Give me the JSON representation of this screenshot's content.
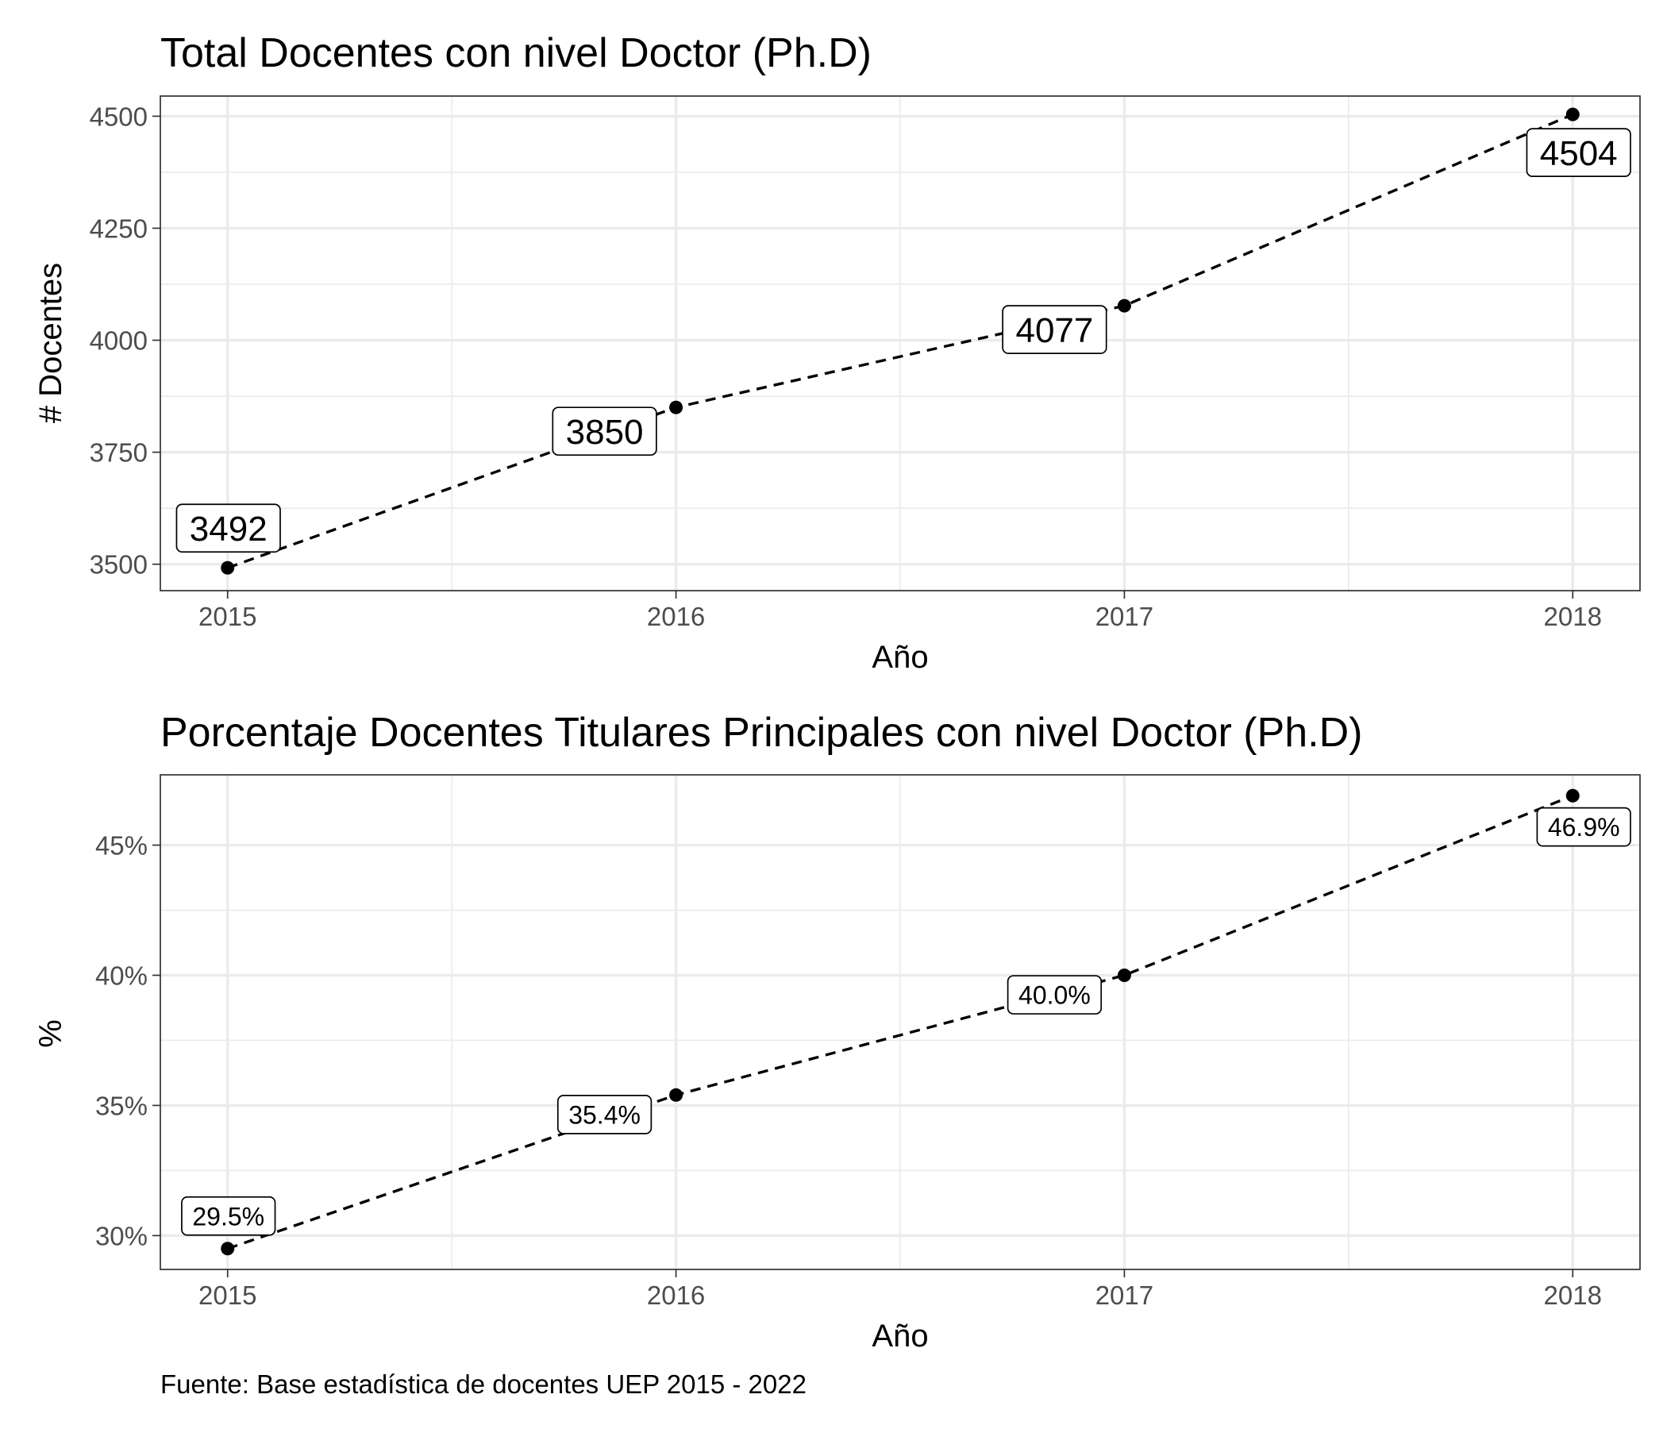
{
  "chart_data": [
    {
      "type": "line",
      "title": "Total Docentes con nivel Doctor (Ph.D)",
      "xlabel": "Año",
      "ylabel": "# Docentes",
      "x": [
        2015,
        2016,
        2017,
        2018
      ],
      "x_tick_labels": [
        "2015",
        "2016",
        "2017",
        "2018"
      ],
      "values": [
        3492,
        3850,
        4077,
        4504
      ],
      "data_labels": [
        "3492",
        "3850",
        "4077",
        "4504"
      ],
      "y_ticks": [
        3500,
        3750,
        4000,
        4250,
        4500
      ],
      "y_tick_labels": [
        "3500",
        "3750",
        "4000",
        "4250",
        "4500"
      ],
      "xlim": [
        2014.85,
        2018.15
      ],
      "ylim": [
        3441,
        4545
      ],
      "grid": true,
      "line_style": "dashed",
      "colors": {
        "line": "#000000",
        "grid": "#ebebeb",
        "border": "#333333"
      }
    },
    {
      "type": "line",
      "title": "Porcentaje Docentes Titulares Principales con nivel Doctor (Ph.D)",
      "xlabel": "Año",
      "ylabel": "%",
      "x": [
        2015,
        2016,
        2017,
        2018
      ],
      "x_tick_labels": [
        "2015",
        "2016",
        "2017",
        "2018"
      ],
      "values": [
        29.5,
        35.4,
        40.0,
        46.9
      ],
      "data_labels": [
        "29.5%",
        "35.4%",
        "40.0%",
        "46.9%"
      ],
      "y_ticks": [
        30,
        35,
        40,
        45
      ],
      "y_tick_labels": [
        "30%",
        "35%",
        "40%",
        "45%"
      ],
      "xlim": [
        2014.85,
        2018.15
      ],
      "ylim": [
        28.7,
        47.7
      ],
      "grid": true,
      "line_style": "dashed",
      "colors": {
        "line": "#000000",
        "grid": "#ebebeb",
        "border": "#333333"
      }
    }
  ],
  "caption": "Fuente: Base estadística de docentes UEP 2015 - 2022"
}
